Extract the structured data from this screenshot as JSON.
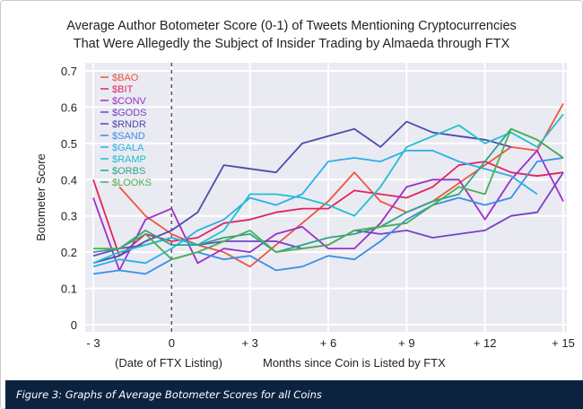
{
  "chart_data": {
    "type": "line",
    "title": "Average Author Botometer Score (0-1) of Tweets Mentioning Cryptocurrencies",
    "subtitle": "That Were Allegedly the Subject of Insider Trading by Almaeda through FTX",
    "xlabel": "Months since Coin is Listed by FTX",
    "xlabel_note": "(Date of FTX Listing)",
    "ylabel": "Botometer Score",
    "xlim": [
      -3,
      15
    ],
    "ylim": [
      0,
      0.7
    ],
    "x_ticks": [
      "- 3",
      "0",
      "+ 3",
      "+ 6",
      "+ 9",
      "+ 12",
      "+ 15"
    ],
    "x_tick_values": [
      -3,
      0,
      3,
      6,
      9,
      12,
      15
    ],
    "y_ticks": [
      "0",
      "0.1",
      "0.2",
      "0.3",
      "0.4",
      "0.5",
      "0.6",
      "0.7"
    ],
    "y_tick_values": [
      0,
      0.1,
      0.2,
      0.3,
      0.4,
      0.5,
      0.6,
      0.7
    ],
    "grid": true,
    "legend_position": "top-left",
    "vline_x": 0,
    "x": [
      -3,
      -2,
      -1,
      0,
      1,
      2,
      3,
      4,
      5,
      6,
      7,
      8,
      9,
      10,
      11,
      12,
      13,
      14,
      15
    ],
    "series": [
      {
        "name": "$BAO",
        "color": "#f0553f",
        "values": [
          null,
          0.38,
          0.3,
          0.25,
          0.22,
          0.2,
          0.16,
          0.22,
          0.28,
          0.34,
          0.42,
          0.34,
          0.31,
          0.34,
          0.39,
          0.44,
          0.49,
          0.48,
          0.61
        ]
      },
      {
        "name": "$BIT",
        "color": "#e0245e",
        "values": [
          0.4,
          0.19,
          0.25,
          0.23,
          0.24,
          0.28,
          0.29,
          0.31,
          0.32,
          0.32,
          0.37,
          0.36,
          0.35,
          0.38,
          0.44,
          0.45,
          0.42,
          0.41,
          0.42
        ]
      },
      {
        "name": "$CONV",
        "color": "#9b30c8",
        "values": [
          0.35,
          0.15,
          0.29,
          0.32,
          0.17,
          0.21,
          0.2,
          0.25,
          0.27,
          0.21,
          0.21,
          0.28,
          0.38,
          0.4,
          0.4,
          0.29,
          0.4,
          0.48,
          0.34
        ]
      },
      {
        "name": "$GODS",
        "color": "#7442c8",
        "values": [
          0.19,
          0.21,
          0.22,
          0.24,
          0.22,
          0.23,
          0.23,
          0.23,
          0.21,
          0.22,
          0.26,
          0.25,
          0.26,
          0.24,
          0.25,
          0.26,
          0.3,
          0.31,
          0.42
        ]
      },
      {
        "name": "$RNDR",
        "color": "#4b4bb0",
        "values": [
          0.17,
          0.19,
          0.23,
          0.26,
          0.31,
          0.44,
          0.43,
          0.42,
          0.5,
          0.52,
          0.54,
          0.49,
          0.56,
          0.53,
          0.52,
          0.51,
          0.49,
          null,
          null
        ]
      },
      {
        "name": "$SAND",
        "color": "#3a8ee6",
        "values": [
          0.14,
          0.15,
          0.14,
          0.18,
          0.2,
          0.18,
          0.19,
          0.15,
          0.16,
          0.19,
          0.18,
          0.23,
          0.29,
          0.33,
          0.35,
          0.33,
          0.35,
          0.45,
          0.46
        ]
      },
      {
        "name": "$GALA",
        "color": "#2ab0e8",
        "values": [
          0.16,
          0.18,
          0.17,
          0.21,
          0.26,
          0.29,
          0.35,
          0.33,
          0.36,
          0.45,
          0.46,
          0.45,
          0.48,
          0.48,
          0.45,
          0.43,
          0.41,
          0.36,
          null
        ]
      },
      {
        "name": "$RAMP",
        "color": "#1fc0d0",
        "values": [
          0.17,
          0.2,
          0.22,
          0.24,
          0.22,
          0.26,
          0.36,
          0.36,
          0.35,
          0.33,
          0.3,
          0.38,
          0.49,
          0.52,
          0.55,
          0.5,
          0.53,
          0.49,
          0.58
        ]
      },
      {
        "name": "$ORBS",
        "color": "#2aa58a",
        "values": [
          0.2,
          0.21,
          0.26,
          0.22,
          0.22,
          0.24,
          0.25,
          0.2,
          0.22,
          0.24,
          0.25,
          0.27,
          0.31,
          0.34,
          0.36,
          0.45,
          0.54,
          0.51,
          0.46
        ]
      },
      {
        "name": "$LOOKS",
        "color": "#4caf50",
        "values": [
          0.21,
          0.21,
          0.25,
          0.18,
          0.2,
          0.23,
          0.26,
          0.2,
          0.21,
          0.22,
          0.26,
          0.27,
          0.28,
          0.33,
          0.38,
          0.36,
          0.54,
          0.51,
          0.46
        ]
      }
    ]
  },
  "caption": "Figure 3: Graphs of Average Botometer Scores for all Coins"
}
